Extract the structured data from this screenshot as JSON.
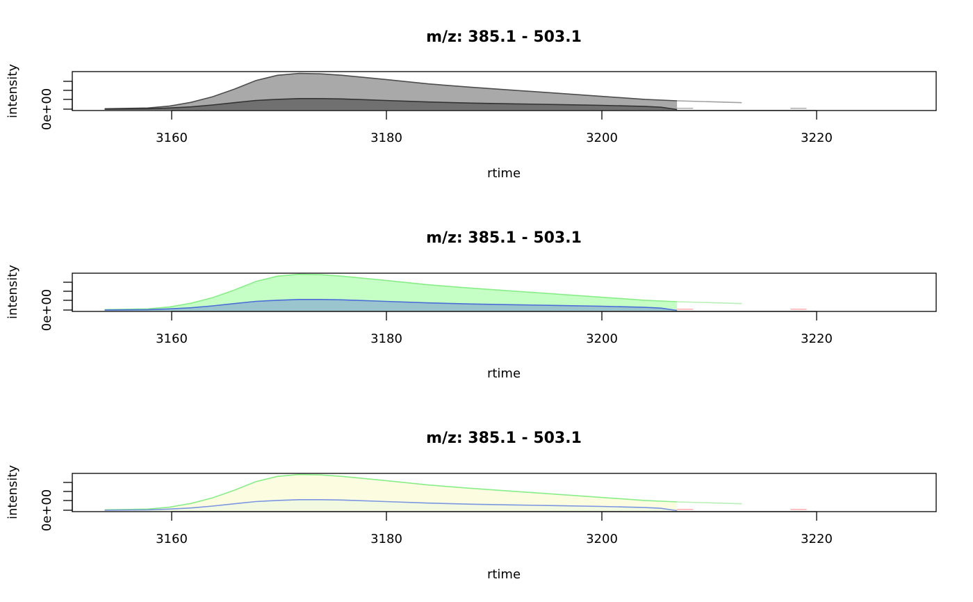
{
  "chart_data": [
    {
      "type": "area",
      "title": "m/z: 385.1 - 503.1",
      "xlabel": "rtime",
      "ylabel": "intensity",
      "xlim": [
        3151,
        3231
      ],
      "ylim": [
        0,
        1
      ],
      "x_ticks": [
        3160,
        3180,
        3200,
        3220
      ],
      "x_tick_labels": [
        "3160",
        "3180",
        "3200",
        "3220"
      ],
      "y_tick_labels": [
        "0e+00"
      ],
      "series": [
        {
          "fill": "#9a9a9a",
          "stroke": "#4d4d4d",
          "filled": true,
          "x": [
            3154,
            3158,
            3160,
            3162,
            3164,
            3166,
            3168,
            3170,
            3172,
            3174,
            3176,
            3180,
            3184,
            3188,
            3192,
            3196,
            3200,
            3204,
            3207
          ],
          "y": [
            0.03,
            0.05,
            0.1,
            0.2,
            0.35,
            0.55,
            0.78,
            0.92,
            0.97,
            0.96,
            0.92,
            0.81,
            0.69,
            0.6,
            0.52,
            0.44,
            0.36,
            0.28,
            0.24
          ]
        },
        {
          "fill": "#666666",
          "stroke": "#333333",
          "filled": true,
          "x": [
            3154,
            3158,
            3160,
            3162,
            3164,
            3166,
            3168,
            3170,
            3172,
            3174,
            3176,
            3180,
            3184,
            3188,
            3192,
            3196,
            3200,
            3204,
            3205.5,
            3207
          ],
          "y": [
            0.02,
            0.03,
            0.05,
            0.08,
            0.13,
            0.19,
            0.25,
            0.28,
            0.3,
            0.3,
            0.29,
            0.25,
            0.21,
            0.18,
            0.16,
            0.14,
            0.12,
            0.09,
            0.07,
            0.01
          ]
        },
        {
          "fill": "none",
          "stroke": "#a0a0a0",
          "filled": false,
          "x": [
            3207,
            3213
          ],
          "y": [
            0.24,
            0.19
          ]
        },
        {
          "fill": "none",
          "stroke": "#b0b0b0",
          "filled": false,
          "x": [
            3207,
            3208.5
          ],
          "y": [
            0.04,
            0.04
          ]
        },
        {
          "fill": "none",
          "stroke": "#b0b0b0",
          "filled": false,
          "x": [
            3217.5,
            3219
          ],
          "y": [
            0.04,
            0.04
          ]
        }
      ]
    },
    {
      "type": "area",
      "title": "m/z: 385.1 - 503.1",
      "xlabel": "rtime",
      "ylabel": "intensity",
      "xlim": [
        3151,
        3231
      ],
      "ylim": [
        0,
        1
      ],
      "x_ticks": [
        3160,
        3180,
        3200,
        3220
      ],
      "x_tick_labels": [
        "3160",
        "3180",
        "3200",
        "3220"
      ],
      "y_tick_labels": [
        "0e+00"
      ],
      "series": [
        {
          "fill": "#bbffbb",
          "stroke": "#88ee88",
          "filled": true,
          "x": [
            3154,
            3158,
            3160,
            3162,
            3164,
            3166,
            3168,
            3170,
            3172,
            3174,
            3176,
            3180,
            3184,
            3188,
            3192,
            3196,
            3200,
            3204,
            3207
          ],
          "y": [
            0.03,
            0.05,
            0.1,
            0.2,
            0.35,
            0.55,
            0.78,
            0.92,
            0.97,
            0.96,
            0.92,
            0.81,
            0.69,
            0.6,
            0.52,
            0.44,
            0.36,
            0.28,
            0.24
          ]
        },
        {
          "fill": "#93bbcf",
          "stroke": "#4b6ed6",
          "filled": true,
          "x": [
            3154,
            3158,
            3160,
            3162,
            3164,
            3166,
            3168,
            3170,
            3172,
            3174,
            3176,
            3180,
            3184,
            3188,
            3192,
            3196,
            3200,
            3204,
            3205.5,
            3207
          ],
          "y": [
            0.02,
            0.03,
            0.05,
            0.08,
            0.13,
            0.19,
            0.25,
            0.28,
            0.3,
            0.3,
            0.29,
            0.25,
            0.21,
            0.18,
            0.16,
            0.14,
            0.12,
            0.09,
            0.07,
            0.01
          ]
        },
        {
          "fill": "none",
          "stroke": "#b8f0b8",
          "filled": false,
          "x": [
            3207,
            3213
          ],
          "y": [
            0.24,
            0.19
          ]
        },
        {
          "fill": "none",
          "stroke": "#ffb0b0",
          "filled": false,
          "x": [
            3207,
            3208.5
          ],
          "y": [
            0.04,
            0.04
          ]
        },
        {
          "fill": "none",
          "stroke": "#ffb0b0",
          "filled": false,
          "x": [
            3217.5,
            3219
          ],
          "y": [
            0.04,
            0.04
          ]
        }
      ]
    },
    {
      "type": "area",
      "title": "m/z: 385.1 - 503.1",
      "xlabel": "rtime",
      "ylabel": "intensity",
      "xlim": [
        3151,
        3231
      ],
      "ylim": [
        0,
        1
      ],
      "x_ticks": [
        3160,
        3180,
        3200,
        3220
      ],
      "x_tick_labels": [
        "3160",
        "3180",
        "3200",
        "3220"
      ],
      "y_tick_labels": [
        "0e+00"
      ],
      "series": [
        {
          "fill": "#fcfcdc",
          "stroke": "#88ee88",
          "filled": true,
          "x": [
            3154,
            3158,
            3160,
            3162,
            3164,
            3166,
            3168,
            3170,
            3172,
            3174,
            3176,
            3180,
            3184,
            3188,
            3192,
            3196,
            3200,
            3204,
            3207
          ],
          "y": [
            0.03,
            0.05,
            0.1,
            0.2,
            0.35,
            0.55,
            0.78,
            0.92,
            0.97,
            0.96,
            0.92,
            0.81,
            0.69,
            0.6,
            0.52,
            0.44,
            0.36,
            0.28,
            0.24
          ]
        },
        {
          "fill": "#eef8e0",
          "stroke": "#7b96e0",
          "filled": true,
          "x": [
            3154,
            3158,
            3160,
            3162,
            3164,
            3166,
            3168,
            3170,
            3172,
            3174,
            3176,
            3180,
            3184,
            3188,
            3192,
            3196,
            3200,
            3204,
            3205.5,
            3207
          ],
          "y": [
            0.02,
            0.03,
            0.05,
            0.08,
            0.13,
            0.19,
            0.25,
            0.28,
            0.3,
            0.3,
            0.29,
            0.25,
            0.21,
            0.18,
            0.16,
            0.14,
            0.12,
            0.09,
            0.07,
            0.01
          ]
        },
        {
          "fill": "none",
          "stroke": "#b8f0b8",
          "filled": false,
          "x": [
            3207,
            3213
          ],
          "y": [
            0.24,
            0.19
          ]
        },
        {
          "fill": "none",
          "stroke": "#ffb0b0",
          "filled": false,
          "x": [
            3207,
            3208.5
          ],
          "y": [
            0.04,
            0.04
          ]
        },
        {
          "fill": "none",
          "stroke": "#ffb0b0",
          "filled": false,
          "x": [
            3217.5,
            3219
          ],
          "y": [
            0.04,
            0.04
          ]
        }
      ]
    }
  ]
}
